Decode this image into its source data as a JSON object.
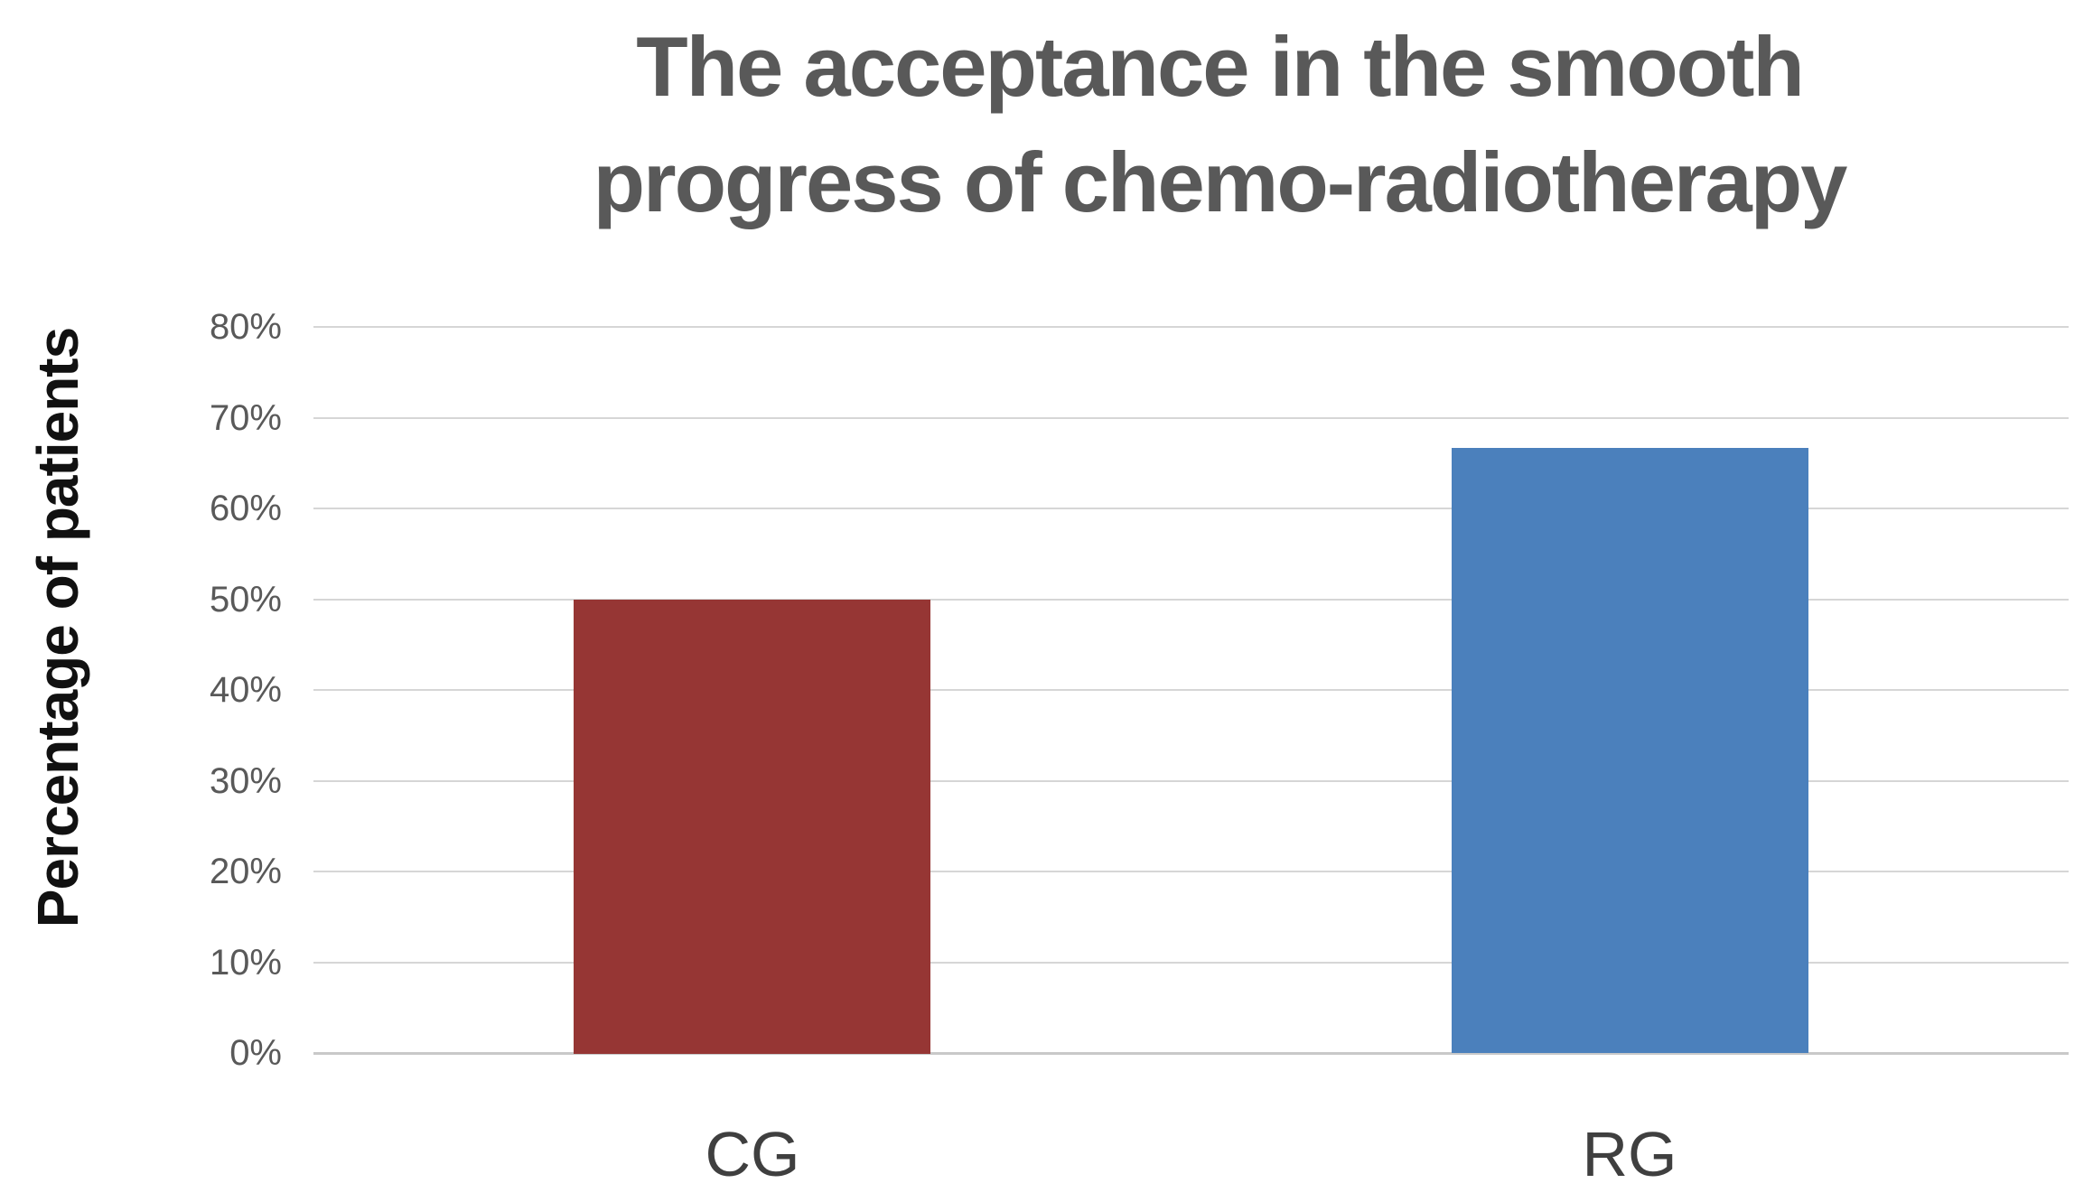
{
  "title": "The acceptance in the smooth progress of chemo-radiotherapy",
  "title_lines": [
    "The acceptance in the smooth",
    "progress of chemo-radiotherapy"
  ],
  "chart_data": {
    "type": "bar",
    "title": "The acceptance in the smooth progress of chemo-radiotherapy",
    "xlabel": "",
    "ylabel": "Percentage of patients",
    "categories": [
      "CG",
      "RG"
    ],
    "values": [
      50,
      66.7
    ],
    "value_unit": "%",
    "bar_colors": [
      "#963634",
      "#4B80BC"
    ],
    "ylim": [
      0,
      80
    ],
    "yticks": [
      0,
      10,
      20,
      30,
      40,
      50,
      60,
      70,
      80
    ],
    "ytick_labels": [
      "0%",
      "10%",
      "20%",
      "30%",
      "40%",
      "50%",
      "60%",
      "70%",
      "80%"
    ],
    "grid": "horizontal",
    "legend_position": "none",
    "colors": {
      "title_text": "#595959",
      "tick_text": "#595959",
      "category_text": "#3f3f3f",
      "axis_label_text": "#111111",
      "gridline": "#d6d6d6",
      "baseline": "#c9c9c9",
      "background": "#ffffff"
    }
  }
}
